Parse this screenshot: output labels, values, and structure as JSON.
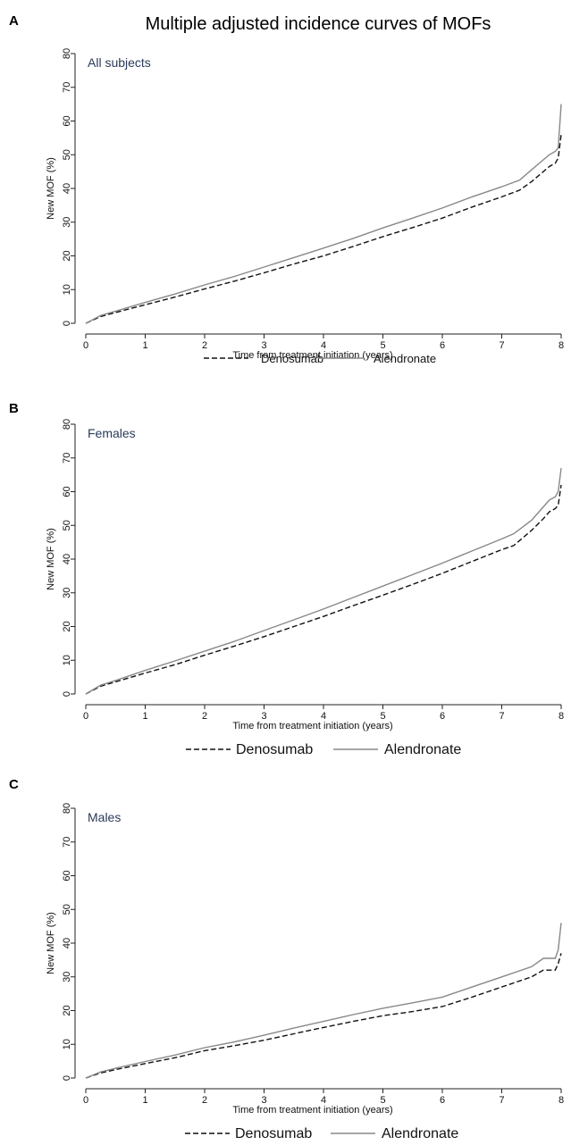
{
  "figure_title": "Multiple adjusted incidence curves of MOFs",
  "chart_data": [
    {
      "type": "line",
      "panel": "A",
      "subtitle": "All subjects",
      "xlabel": "Time from treatment initiation (years)",
      "ylabel": "New MOF (%)",
      "xlim": [
        0,
        8
      ],
      "ylim": [
        0,
        80
      ],
      "xticks": [
        0,
        1,
        2,
        3,
        4,
        5,
        6,
        7,
        8
      ],
      "yticks": [
        0,
        10,
        20,
        30,
        40,
        50,
        60,
        70,
        80
      ],
      "grid": false,
      "legend_position": "bottom",
      "series": [
        {
          "name": "Denosumab",
          "style": "dashed",
          "color": "#111111",
          "x": [
            0,
            0.25,
            0.5,
            1,
            1.5,
            2,
            2.5,
            3,
            3.5,
            4,
            4.5,
            5,
            5.5,
            6,
            6.5,
            7,
            7.3,
            7.5,
            7.7,
            7.8,
            7.9,
            7.95,
            8
          ],
          "y": [
            0,
            2,
            3.2,
            5.5,
            7.8,
            10.2,
            12.5,
            15,
            17.6,
            20,
            22.8,
            25.7,
            28.4,
            31.2,
            34.5,
            37.5,
            39.5,
            42,
            45,
            46.5,
            47.5,
            49,
            56
          ]
        },
        {
          "name": "Alendronate",
          "style": "solid",
          "color": "#888888",
          "x": [
            0,
            0.25,
            0.5,
            1,
            1.5,
            2,
            2.5,
            3,
            3.5,
            4,
            4.5,
            5,
            5.5,
            6,
            6.5,
            7,
            7.3,
            7.5,
            7.7,
            7.8,
            7.9,
            7.95,
            8
          ],
          "y": [
            0,
            2.3,
            3.6,
            6.2,
            8.7,
            11.4,
            13.9,
            16.7,
            19.5,
            22.3,
            25.2,
            28.3,
            31.2,
            34.2,
            37.5,
            40.5,
            42.5,
            45.5,
            48.5,
            50,
            51,
            52,
            65
          ]
        }
      ]
    },
    {
      "type": "line",
      "panel": "B",
      "subtitle": "Females",
      "xlabel": "Time from treatment initiation (years)",
      "ylabel": "New MOF (%)",
      "xlim": [
        0,
        8
      ],
      "ylim": [
        0,
        80
      ],
      "xticks": [
        0,
        1,
        2,
        3,
        4,
        5,
        6,
        7,
        8
      ],
      "yticks": [
        0,
        10,
        20,
        30,
        40,
        50,
        60,
        70,
        80
      ],
      "grid": false,
      "legend_position": "bottom",
      "series": [
        {
          "name": "Denosumab",
          "style": "dashed",
          "color": "#111111",
          "x": [
            0,
            0.25,
            0.5,
            1,
            1.5,
            2,
            2.5,
            3,
            3.5,
            4,
            4.5,
            5,
            5.5,
            6,
            6.5,
            7,
            7.2,
            7.5,
            7.7,
            7.8,
            7.9,
            7.95,
            8
          ],
          "y": [
            0,
            2.3,
            3.6,
            6.2,
            8.7,
            11.5,
            14.2,
            17,
            20,
            23,
            26.2,
            29.3,
            32.5,
            35.8,
            39.3,
            42.8,
            44,
            48.5,
            52,
            54,
            55,
            56,
            62
          ]
        },
        {
          "name": "Alendronate",
          "style": "solid",
          "color": "#888888",
          "x": [
            0,
            0.25,
            0.5,
            1,
            1.5,
            2,
            2.5,
            3,
            3.5,
            4,
            4.5,
            5,
            5.5,
            6,
            6.5,
            7,
            7.2,
            7.5,
            7.7,
            7.8,
            7.9,
            7.95,
            8
          ],
          "y": [
            0,
            2.6,
            4,
            7,
            9.8,
            12.7,
            15.6,
            18.8,
            22,
            25.2,
            28.6,
            32,
            35.4,
            38.8,
            42.4,
            46,
            47.5,
            51.5,
            55.5,
            57.5,
            58.5,
            60,
            67
          ]
        }
      ]
    },
    {
      "type": "line",
      "panel": "C",
      "subtitle": "Males",
      "xlabel": "Time from treatment initiation (years)",
      "ylabel": "New MOF (%)",
      "xlim": [
        0,
        8
      ],
      "ylim": [
        0,
        80
      ],
      "xticks": [
        0,
        1,
        2,
        3,
        4,
        5,
        6,
        7,
        8
      ],
      "yticks": [
        0,
        10,
        20,
        30,
        40,
        50,
        60,
        70,
        80
      ],
      "grid": false,
      "legend_position": "bottom",
      "series": [
        {
          "name": "Denosumab",
          "style": "dashed",
          "color": "#111111",
          "x": [
            0,
            0.25,
            0.5,
            1,
            1.5,
            2,
            2.5,
            3,
            3.5,
            4,
            4.5,
            5,
            5.5,
            6,
            6.5,
            7,
            7.5,
            7.7,
            7.9,
            7.95,
            8
          ],
          "y": [
            0,
            1.5,
            2.5,
            4.3,
            6,
            8.1,
            9.6,
            11.2,
            13.1,
            15,
            16.8,
            18.5,
            19.7,
            21.2,
            24,
            27,
            30,
            32,
            32,
            34,
            37
          ]
        },
        {
          "name": "Alendronate",
          "style": "solid",
          "color": "#888888",
          "x": [
            0,
            0.25,
            0.5,
            1,
            1.5,
            2,
            2.5,
            3,
            3.5,
            4,
            4.5,
            5,
            5.5,
            6,
            6.5,
            7,
            7.5,
            7.7,
            7.9,
            7.95,
            8
          ],
          "y": [
            0,
            1.8,
            2.9,
            4.9,
            6.8,
            9,
            10.7,
            12.7,
            14.8,
            16.8,
            18.8,
            20.7,
            22.3,
            24,
            27,
            30,
            33,
            35.5,
            35.5,
            38,
            46
          ]
        }
      ]
    }
  ]
}
